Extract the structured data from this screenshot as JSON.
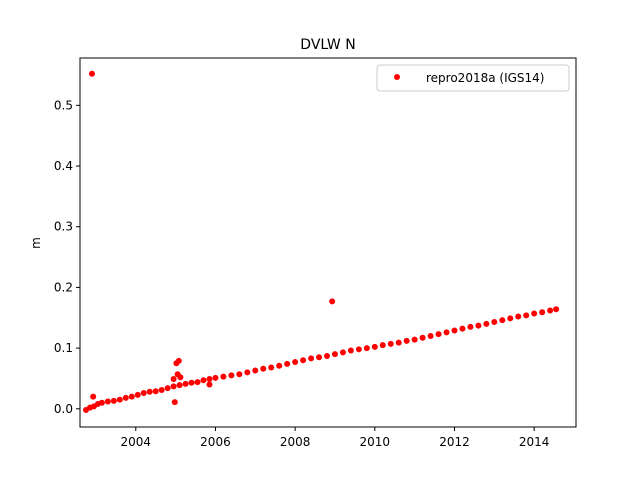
{
  "chart_data": {
    "type": "scatter",
    "title": "DVLW N",
    "xlabel": "",
    "ylabel": "m",
    "xlim": [
      2002.6,
      2015.05
    ],
    "ylim": [
      -0.03,
      0.578
    ],
    "xticks": [
      2004,
      2006,
      2008,
      2010,
      2012,
      2014
    ],
    "xtick_labels": [
      "2004",
      "2006",
      "2008",
      "2010",
      "2012",
      "2014"
    ],
    "yticks": [
      0.0,
      0.1,
      0.2,
      0.3,
      0.4,
      0.5
    ],
    "ytick_labels": [
      "0.0",
      "0.1",
      "0.2",
      "0.3",
      "0.4",
      "0.5"
    ],
    "grid": false,
    "legend_position": "upper right",
    "series": [
      {
        "name": "repro2018a (IGS14)",
        "color": "#ff0000",
        "marker": "circle",
        "x": [
          2002.75,
          2002.85,
          2002.95,
          2003.05,
          2003.15,
          2003.3,
          2003.45,
          2003.6,
          2003.75,
          2003.9,
          2004.05,
          2004.2,
          2004.35,
          2004.5,
          2004.65,
          2004.8,
          2004.95,
          2005.1,
          2005.25,
          2005.4,
          2005.55,
          2005.7,
          2005.85,
          2006.0,
          2006.2,
          2006.4,
          2006.6,
          2006.8,
          2007.0,
          2007.2,
          2007.4,
          2007.6,
          2007.8,
          2008.0,
          2008.2,
          2008.4,
          2008.6,
          2008.8,
          2009.0,
          2009.2,
          2009.4,
          2009.6,
          2009.8,
          2010.0,
          2010.2,
          2010.4,
          2010.6,
          2010.8,
          2011.0,
          2011.2,
          2011.4,
          2011.6,
          2011.8,
          2012.0,
          2012.2,
          2012.4,
          2012.6,
          2012.8,
          2013.0,
          2013.2,
          2013.4,
          2013.6,
          2013.8,
          2014.0,
          2014.2,
          2014.4,
          2014.55,
          2002.9,
          2002.93,
          2004.98,
          2005.02,
          2005.08,
          2005.05,
          2004.95,
          2005.12,
          2005.85,
          2008.93
        ],
        "y": [
          -0.002,
          0.002,
          0.004,
          0.008,
          0.01,
          0.012,
          0.013,
          0.015,
          0.018,
          0.02,
          0.023,
          0.026,
          0.028,
          0.029,
          0.031,
          0.034,
          0.037,
          0.039,
          0.041,
          0.043,
          0.044,
          0.047,
          0.049,
          0.051,
          0.053,
          0.055,
          0.057,
          0.06,
          0.063,
          0.066,
          0.068,
          0.071,
          0.074,
          0.077,
          0.08,
          0.083,
          0.085,
          0.087,
          0.09,
          0.093,
          0.096,
          0.098,
          0.1,
          0.102,
          0.105,
          0.107,
          0.109,
          0.112,
          0.114,
          0.117,
          0.12,
          0.123,
          0.126,
          0.129,
          0.132,
          0.135,
          0.137,
          0.14,
          0.143,
          0.146,
          0.149,
          0.152,
          0.154,
          0.157,
          0.159,
          0.162,
          0.164,
          0.552,
          0.02,
          0.011,
          0.075,
          0.079,
          0.057,
          0.049,
          0.052,
          0.04,
          0.177
        ]
      }
    ]
  }
}
